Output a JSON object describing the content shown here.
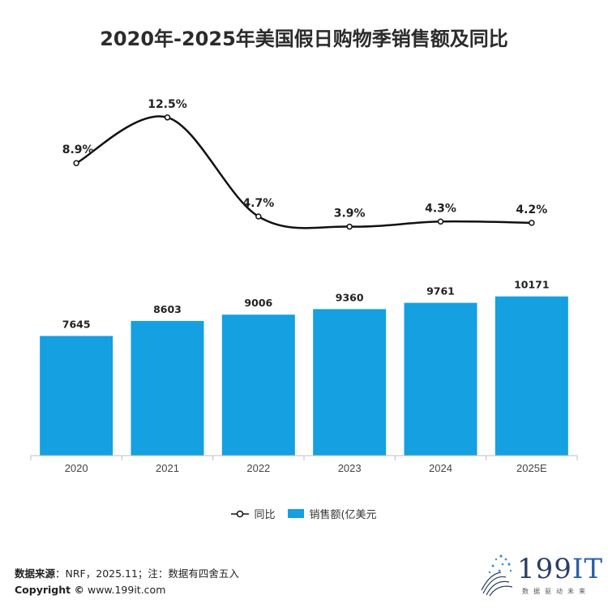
{
  "title": "2020年-2025年美国假日购物季销售额及同比",
  "chart_data": {
    "type": "bar+line",
    "categories": [
      "2020",
      "2021",
      "2022",
      "2023",
      "2024",
      "2025E"
    ],
    "series": [
      {
        "name": "销售额(亿美元",
        "type": "bar",
        "values": [
          7645,
          8603,
          9006,
          9360,
          9761,
          10171
        ],
        "color": "#14a0e1"
      },
      {
        "name": "同比",
        "type": "line",
        "values": [
          8.9,
          12.5,
          4.7,
          3.9,
          4.3,
          4.2
        ],
        "labels": [
          "8.9%",
          "12.5%",
          "4.7%",
          "3.9%",
          "4.3%",
          "4.2%"
        ],
        "color": "#111111"
      }
    ],
    "bar_ylim": [
      0,
      11500
    ],
    "line_ylim": [
      -14,
      16
    ],
    "grid": false,
    "legend_position": "bottom"
  },
  "legend": {
    "line_label": "同比",
    "bar_label": "销售额(亿美元"
  },
  "footer": {
    "source_label": "数据来源",
    "source_text": "：NRF，2025.11；注：数据有四舍五入",
    "copyright_label": "Copyright ©",
    "copyright_text": "www.199it.com"
  },
  "logo": {
    "text_num": "199",
    "text_it": "IT",
    "sub": "数据驱动未来"
  }
}
